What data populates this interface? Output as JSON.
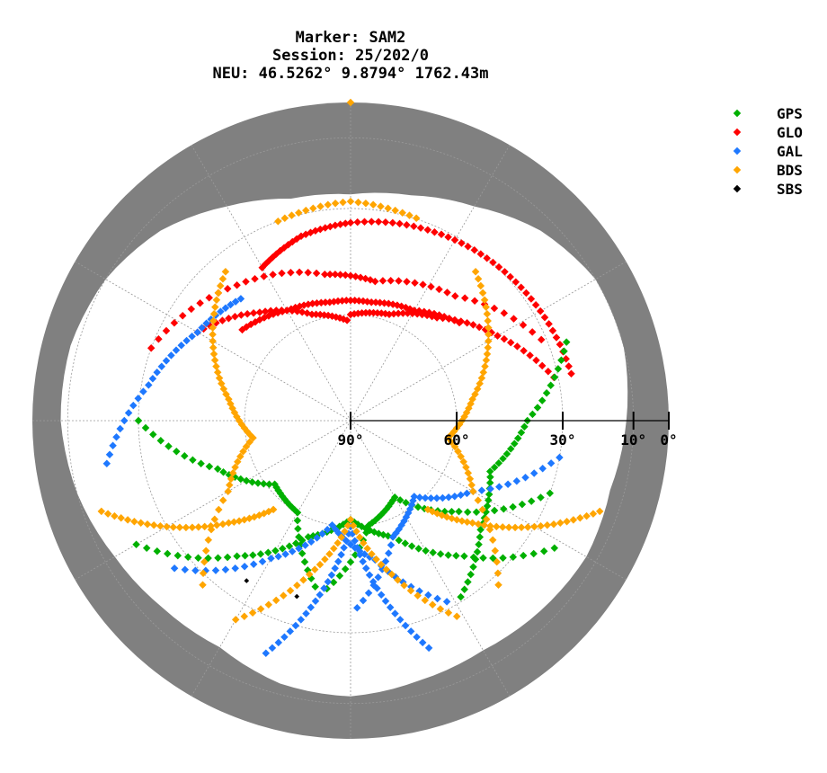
{
  "chart_data": {
    "type": "scatter",
    "subtype": "polar-skyplot",
    "title_lines": [
      "Marker: SAM2",
      "Session: 25/202/0",
      "NEU: 46.5262° 9.8794° 1762.43m"
    ],
    "radial_axis": {
      "quantity": "elevation",
      "range": [
        0,
        90
      ],
      "tick_labels": [
        "90°",
        "60°",
        "30°",
        "10°",
        "0°"
      ],
      "tick_values": [
        90,
        60,
        30,
        10,
        0
      ]
    },
    "grid": true,
    "legend_position": "top-right",
    "legend": [
      {
        "name": "GPS",
        "color": "#00b000"
      },
      {
        "name": "GLO",
        "color": "#ff0000"
      },
      {
        "name": "GAL",
        "color": "#1e78ff"
      },
      {
        "name": "BDS",
        "color": "#ffa500"
      },
      {
        "name": "SBS",
        "color": "#000000"
      }
    ],
    "obstruction_color": "#808080",
    "obstruction_horizon": {
      "note": "terrain mask: minimum visible elevation (deg) by azimuth (deg)",
      "azimuth": [
        0,
        15,
        30,
        45,
        60,
        75,
        90,
        105,
        120,
        135,
        150,
        165,
        180,
        195,
        210,
        225,
        240,
        255,
        270,
        285,
        300,
        315,
        330,
        345
      ],
      "elevation": [
        26,
        24,
        20,
        14,
        10,
        10,
        12,
        14,
        13,
        14,
        15,
        14,
        12,
        13,
        16,
        15,
        13,
        10,
        8,
        8,
        10,
        14,
        20,
        25
      ]
    },
    "tracks": [
      {
        "system": "GLO",
        "az": [
          330,
          345,
          0,
          20,
          40,
          60,
          80
        ],
        "el": [
          40,
          36,
          34,
          32,
          30,
          28,
          26
        ]
      },
      {
        "system": "GLO",
        "az": [
          290,
          320,
          350,
          10,
          40,
          70
        ],
        "el": [
          30,
          40,
          48,
          50,
          44,
          30
        ]
      },
      {
        "system": "GLO",
        "az": [
          310,
          330,
          350,
          10,
          30,
          50
        ],
        "el": [
          50,
          54,
          56,
          56,
          54,
          48
        ]
      },
      {
        "system": "GLO",
        "az": [
          0,
          20,
          40,
          60,
          80
        ],
        "el": [
          60,
          58,
          52,
          42,
          30
        ]
      },
      {
        "system": "GLO",
        "az": [
          300,
          320,
          340,
          0
        ],
        "el": [
          40,
          50,
          58,
          62
        ]
      },
      {
        "system": "GPS",
        "az": [
          240,
          220,
          200,
          180,
          160,
          140,
          120
        ],
        "el": [
          20,
          40,
          55,
          62,
          55,
          40,
          20
        ]
      },
      {
        "system": "GPS",
        "az": [
          270,
          250,
          230,
          210,
          190
        ],
        "el": [
          30,
          50,
          62,
          60,
          40
        ]
      },
      {
        "system": "GPS",
        "az": [
          110,
          130,
          150,
          170,
          190
        ],
        "el": [
          30,
          50,
          65,
          60,
          40
        ]
      },
      {
        "system": "GPS",
        "az": [
          70,
          90,
          110,
          130,
          150
        ],
        "el": [
          25,
          40,
          48,
          42,
          30
        ]
      },
      {
        "system": "GAL",
        "az": [
          200,
          190,
          180,
          170,
          160
        ],
        "el": [
          20,
          40,
          60,
          40,
          20
        ]
      },
      {
        "system": "GAL",
        "az": [
          230,
          210,
          190,
          170,
          150
        ],
        "el": [
          25,
          45,
          60,
          50,
          30
        ]
      },
      {
        "system": "GAL",
        "az": [
          100,
          120,
          140,
          160,
          180
        ],
        "el": [
          30,
          50,
          62,
          55,
          35
        ]
      },
      {
        "system": "GAL",
        "az": [
          260,
          280,
          300,
          320
        ],
        "el": [
          20,
          32,
          40,
          44
        ]
      },
      {
        "system": "BDS",
        "az": [
          320,
          300,
          280,
          260,
          240,
          220
        ],
        "el": [
          35,
          45,
          55,
          62,
          50,
          25
        ]
      },
      {
        "system": "BDS",
        "az": [
          40,
          60,
          80,
          100,
          120,
          140
        ],
        "el": [
          35,
          45,
          55,
          62,
          50,
          25
        ]
      },
      {
        "system": "BDS",
        "az": [
          210,
          195,
          180,
          165,
          150
        ],
        "el": [
          25,
          45,
          62,
          45,
          25
        ]
      },
      {
        "system": "BDS",
        "az": [
          250,
          240,
          230,
          220
        ],
        "el": [
          15,
          30,
          45,
          58
        ]
      },
      {
        "system": "BDS",
        "az": [
          110,
          120,
          130,
          140
        ],
        "el": [
          15,
          30,
          45,
          58
        ]
      },
      {
        "system": "BDS",
        "az": [
          340,
          0,
          20
        ],
        "el": [
          30,
          28,
          30
        ]
      },
      {
        "system": "SBS",
        "az": [
          213
        ],
        "el": [
          36
        ]
      },
      {
        "system": "SBS",
        "az": [
          197
        ],
        "el": [
          38
        ]
      }
    ]
  }
}
